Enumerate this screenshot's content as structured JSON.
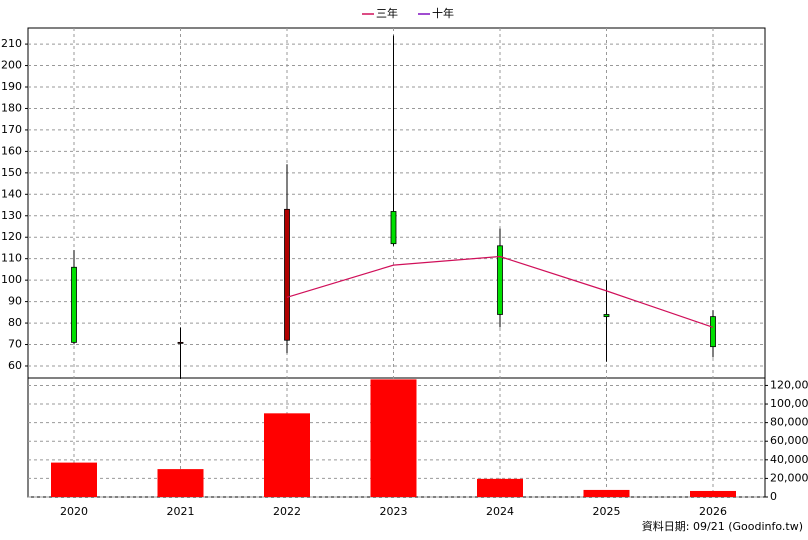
{
  "chart_data": {
    "type": "candlestick",
    "categories": [
      "2020",
      "2021",
      "2022",
      "2023",
      "2024",
      "2025",
      "2026"
    ],
    "open": [
      106,
      71,
      72,
      132,
      116,
      84,
      83
    ],
    "high": [
      114,
      78,
      154,
      214,
      124,
      100,
      86
    ],
    "low": [
      70,
      54,
      66,
      116,
      78,
      62,
      64
    ],
    "close": [
      71,
      71,
      133,
      117,
      84,
      83,
      69
    ],
    "up_color": "#b00000",
    "down_color": "#00e000",
    "ylim": [
      54.4,
      217.5
    ],
    "yticks": [
      60,
      70,
      80,
      90,
      100,
      110,
      120,
      130,
      140,
      150,
      160,
      170,
      180,
      190,
      200,
      210
    ],
    "grid": true,
    "legend": "top",
    "series": [
      {
        "name": "三年",
        "color": "#d0105a",
        "values": [
          null,
          null,
          92,
          107,
          111,
          95,
          78
        ]
      },
      {
        "name": "十年",
        "color": "#8010c0",
        "values": [
          null,
          null,
          null,
          null,
          null,
          null,
          null
        ]
      }
    ],
    "volume": {
      "type": "bar",
      "color": "#ff0000",
      "values": [
        37000,
        30000,
        90000,
        126500,
        19500,
        7600,
        6500
      ],
      "ylim": [
        0,
        128000
      ],
      "yticks": [
        0,
        {
          "value": 20000,
          "label": "20,000"
        },
        {
          "value": 40000,
          "label": "40,000"
        },
        {
          "value": 60000,
          "label": "60,000"
        },
        {
          "value": 80000,
          "label": "80,000"
        },
        {
          "value": 100000,
          "label": "100,000"
        },
        {
          "value": 120000,
          "label": "120,000"
        }
      ]
    },
    "note": "資料日期: 09/21  (Goodinfo.tw)"
  }
}
